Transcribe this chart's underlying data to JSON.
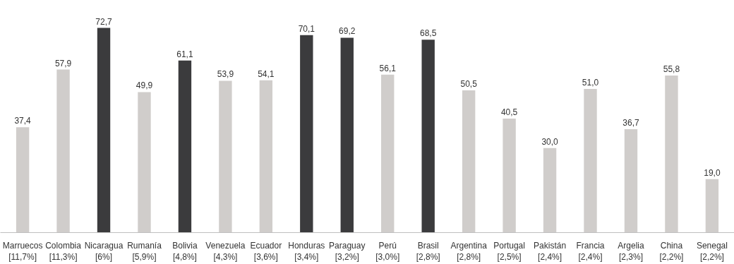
{
  "chart_data": {
    "type": "bar",
    "categories": [
      "Marruecos\n[11,7%]",
      "Colombia\n[11,3%]",
      "Nicaragua\n[6%]",
      "Rumanía\n[5,9%]",
      "Bolivia\n[4,8%]",
      "Venezuela\n[4,3%]",
      "Ecuador\n[3,6%]",
      "Honduras\n[3,4%]",
      "Paraguay\n[3,2%]",
      "Perú\n[3,0%]",
      "Brasil\n[2,8%]",
      "Argentina\n[2,8%]",
      "Portugal\n[2,5%]",
      "Pakistán\n[2,4%]",
      "Francia\n[2,4%]",
      "Argelia\n[2,3%]",
      "China\n[2,2%]",
      "Senegal\n[2,2%]"
    ],
    "values": [
      37.4,
      57.9,
      72.7,
      49.9,
      61.1,
      53.9,
      54.1,
      70.1,
      69.2,
      56.1,
      68.5,
      50.5,
      40.5,
      30.0,
      51.0,
      36.7,
      55.8,
      19.0
    ],
    "value_labels": [
      "37,4",
      "57,9",
      "72,7",
      "49,9",
      "61,1",
      "53,9",
      "54,1",
      "70,1",
      "69,2",
      "56,1",
      "68,5",
      "50,5",
      "40,5",
      "30,0",
      "51,0",
      "36,7",
      "55,8",
      "19,0"
    ],
    "colors": [
      "#d0cdcb",
      "#d0cdcb",
      "#3b3b3d",
      "#d0cdcb",
      "#3b3b3d",
      "#d0cdcb",
      "#d0cdcb",
      "#3b3b3d",
      "#3b3b3d",
      "#d0cdcb",
      "#3b3b3d",
      "#d0cdcb",
      "#d0cdcb",
      "#d0cdcb",
      "#d0cdcb",
      "#d0cdcb",
      "#d0cdcb",
      "#d0cdcb"
    ],
    "grid": false
  }
}
